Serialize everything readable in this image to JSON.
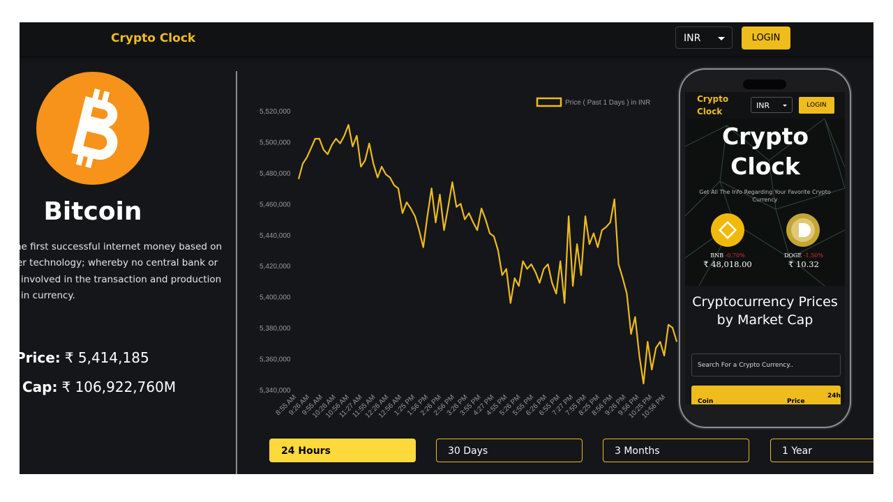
{
  "header": {
    "brand": "Crypto Clock",
    "currency": "INR",
    "login": "LOGIN"
  },
  "coin": {
    "name": "Bitcoin",
    "description": [
      "he first successful internet money based on",
      "er technology; whereby no central bank or",
      "involved in the transaction and production",
      "in currency."
    ],
    "price_label": "Price:",
    "price": "₹ 5,414,185",
    "market_cap_label": "Cap:",
    "market_cap": "₹ 106,922,760M"
  },
  "chart_data": {
    "type": "line",
    "series": [
      {
        "name": "Price ( Past 1 Days ) in INR",
        "color": "#eebc1d",
        "values": [
          5476000,
          5486000,
          5490000,
          5496000,
          5502000,
          5502000,
          5495000,
          5492000,
          5498000,
          5502000,
          5499000,
          5504000,
          5511000,
          5497000,
          5504000,
          5484000,
          5488000,
          5499000,
          5486000,
          5477000,
          5484000,
          5479000,
          5477000,
          5472000,
          5470000,
          5454000,
          5461000,
          5457000,
          5452000,
          5443000,
          5432000,
          5452000,
          5470000,
          5448000,
          5466000,
          5443000,
          5458000,
          5474000,
          5458000,
          5460000,
          5450000,
          5454000,
          5448000,
          5443000,
          5457000,
          5450000,
          5441000,
          5439000,
          5430000,
          5414000,
          5418000,
          5396000,
          5412000,
          5407000,
          5423000,
          5418000,
          5421000,
          5416000,
          5409000,
          5418000,
          5421000,
          5409000,
          5402000,
          5423000,
          5396000,
          5452000,
          5407000,
          5434000,
          5414000,
          5452000,
          5434000,
          5441000,
          5432000,
          5443000,
          5445000,
          5448000,
          5463000,
          5421000,
          5412000,
          5402000,
          5376000,
          5387000,
          5362000,
          5344000,
          5371000,
          5353000,
          5367000,
          5371000,
          5362000,
          5382000,
          5380000,
          5371000
        ]
      }
    ],
    "x_labels": [
      "8:55 AM",
      "9:26 AM",
      "9:55 AM",
      "10:26 AM",
      "10:56 AM",
      "11:27 AM",
      "11:55 AM",
      "12:26 AM",
      "12:56 AM",
      "1:25 PM",
      "1:56 PM",
      "2:26 PM",
      "2:56 PM",
      "3:26 PM",
      "3:55 PM",
      "4:27 PM",
      "4:55 PM",
      "5:26 PM",
      "5:55 PM",
      "6:26 PM",
      "6:55 PM",
      "7:27 PM",
      "7:55 PM",
      "8:25 PM",
      "8:56 PM",
      "9:26 PM",
      "9:56 PM",
      "10:25 PM",
      "10:56 PM"
    ],
    "ylim": [
      5340000,
      5520000
    ],
    "yticks": [
      {
        "value": 5340000,
        "label": "5,340,000"
      },
      {
        "value": 5360000,
        "label": "5,360,000"
      },
      {
        "value": 5380000,
        "label": "5,380,000"
      },
      {
        "value": 5400000,
        "label": "5,400,000"
      },
      {
        "value": 5420000,
        "label": "5,420,000"
      },
      {
        "value": 5440000,
        "label": "5,440,000"
      },
      {
        "value": 5460000,
        "label": "5,460,000"
      },
      {
        "value": 5480000,
        "label": "5,480,000"
      },
      {
        "value": 5500000,
        "label": "5,500,000"
      },
      {
        "value": 5520000,
        "label": "5,520,000"
      }
    ]
  },
  "range_buttons": [
    "24 Hours",
    "30 Days",
    "3 Months",
    "1 Year"
  ],
  "phone": {
    "brand": "Crypto Clock",
    "currency": "INR",
    "login": "LOGIN",
    "hero_title": "Crypto Clock",
    "hero_subtitle": "Get All The Info Regarding Your Favorite Crypto Currency",
    "trending": [
      {
        "symbol": "BNB",
        "change": "-0.70%",
        "price": "₹ 48,018.00"
      },
      {
        "symbol": "DOGE",
        "change": "-1.50%",
        "price": "₹ 10.32"
      }
    ],
    "section_title": "Cryptocurrency Prices by Market Cap",
    "search_placeholder": "Search For a Crypto Currency..",
    "table_headers": [
      "Coin",
      "Price",
      "24h"
    ]
  }
}
